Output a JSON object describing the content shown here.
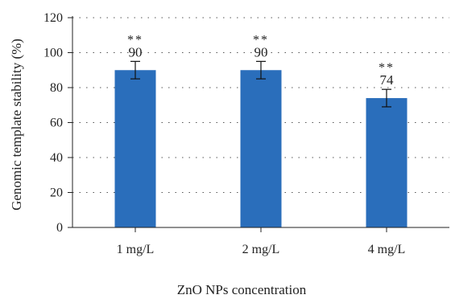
{
  "chart_data": {
    "type": "bar",
    "title": "",
    "xlabel": "ZnO NPs concentration",
    "ylabel": "Genomic template stability (%)",
    "categories": [
      "1 mg/L",
      "2 mg/L",
      "4 mg/L"
    ],
    "values": [
      90,
      90,
      74
    ],
    "value_labels": [
      "90",
      "90",
      "74"
    ],
    "significance": [
      "**",
      "**",
      "**"
    ],
    "error": [
      5,
      5,
      5
    ],
    "ylim": [
      0,
      120
    ],
    "yticks": [
      "0",
      "20",
      "40",
      "60",
      "80",
      "100",
      "120"
    ],
    "grid": "horizontal dotted",
    "bar_color": "#2a6ebb"
  }
}
